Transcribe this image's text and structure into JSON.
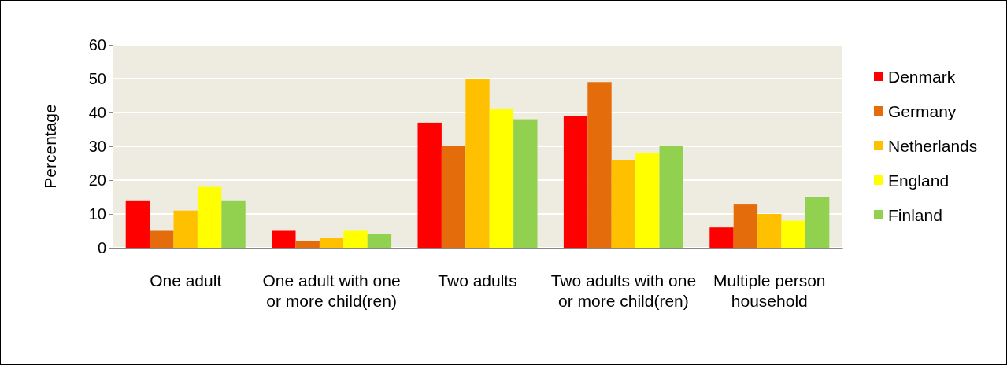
{
  "chart_data": {
    "type": "bar",
    "ylabel": "Percentage",
    "categories": [
      "One adult",
      "One adult with one or more child(ren)",
      "Two adults",
      "Two adults with one or more child(ren)",
      "Multiple person household"
    ],
    "series": [
      {
        "name": "Denmark",
        "color": "#ff0000",
        "values": [
          14,
          5,
          37,
          39,
          6
        ]
      },
      {
        "name": "Germany",
        "color": "#e46c0a",
        "values": [
          5,
          2,
          30,
          49,
          13
        ]
      },
      {
        "name": "Netherlands",
        "color": "#ffc000",
        "values": [
          11,
          3,
          50,
          26,
          10
        ]
      },
      {
        "name": "England",
        "color": "#ffff00",
        "values": [
          18,
          5,
          41,
          28,
          8
        ]
      },
      {
        "name": "Finland",
        "color": "#92d050",
        "values": [
          14,
          4,
          38,
          30,
          15
        ]
      }
    ],
    "ylim": [
      0,
      60
    ],
    "yticks": [
      0,
      10,
      20,
      30,
      40,
      50,
      60
    ],
    "grid": "y",
    "legend": "right"
  }
}
